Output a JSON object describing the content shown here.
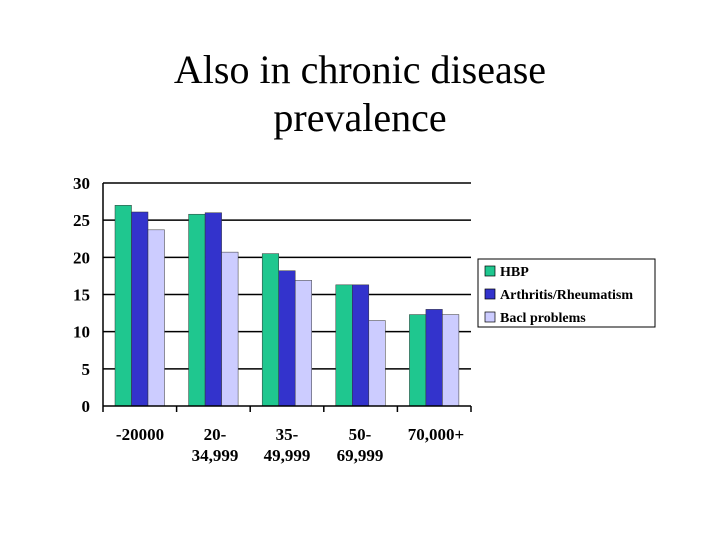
{
  "title_lines": [
    "Also in chronic disease",
    "prevalence"
  ],
  "chart_data": {
    "type": "bar",
    "title": "Also in chronic disease prevalence",
    "categories": [
      [
        "-20000"
      ],
      [
        "20-",
        "34,999"
      ],
      [
        "35-",
        "49,999"
      ],
      [
        "50-",
        "69,999"
      ],
      [
        "70,000+"
      ]
    ],
    "series": [
      {
        "name": "HBP",
        "color": "#1fc78f",
        "values": [
          27,
          25.8,
          20.5,
          16.3,
          12.3
        ]
      },
      {
        "name": "Arthritis/Rheumatism",
        "color": "#3333cc",
        "values": [
          26.1,
          26,
          18.2,
          16.3,
          13
        ]
      },
      {
        "name": "Bacl problems",
        "color": "#ccccff",
        "values": [
          23.7,
          20.7,
          16.9,
          11.5,
          12.3
        ]
      }
    ],
    "ylim": [
      0,
      30
    ],
    "yticks": [
      0,
      5,
      10,
      15,
      20,
      25,
      30
    ],
    "grid": true,
    "legend": "right",
    "xlabel": "",
    "ylabel": ""
  }
}
